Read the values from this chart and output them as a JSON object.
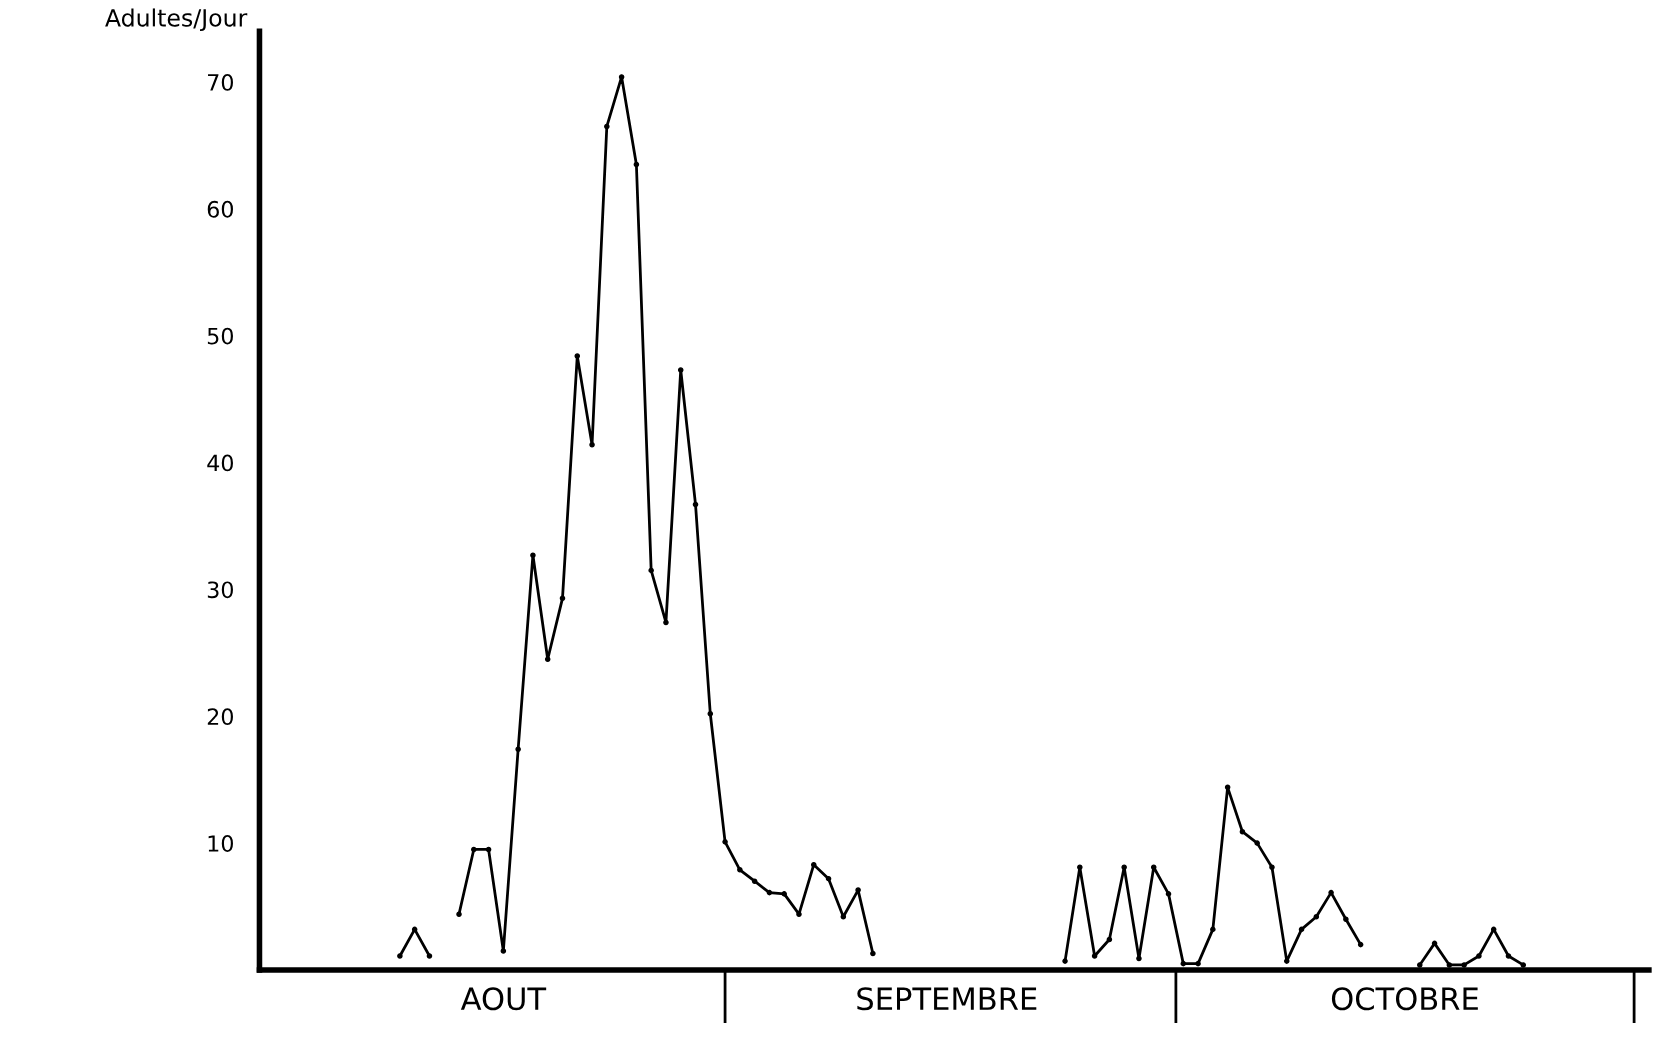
{
  "chart_data": {
    "type": "line",
    "ylabel": "Adultes/Jour",
    "categories": [
      null,
      null,
      null,
      null,
      null,
      null,
      null,
      null,
      null,
      null,
      null,
      null,
      null,
      null,
      null,
      null,
      "AOUT",
      null,
      null,
      null,
      null,
      null,
      null,
      null,
      null,
      null,
      null,
      null,
      null,
      null,
      null,
      null,
      null,
      null,
      null,
      null,
      null,
      null,
      null,
      null,
      null,
      null,
      null,
      null,
      null,
      null,
      "SEPTEMBRE",
      null,
      null,
      null,
      null,
      null,
      null,
      null,
      null,
      null,
      null,
      null,
      null,
      null,
      null,
      null,
      null,
      null,
      null,
      null,
      null,
      null,
      null,
      null,
      null,
      null,
      null,
      null,
      null,
      null,
      null,
      "OCTOBRE",
      null,
      null,
      null,
      null,
      null,
      null,
      null,
      null,
      null,
      null,
      null,
      null,
      null,
      null,
      null,
      null
    ],
    "series": [
      {
        "color": "#000000",
        "values": [
          null,
          null,
          null,
          null,
          null,
          null,
          null,
          null,
          null,
          1.1,
          3.2,
          1.1,
          null,
          4.4,
          9.5,
          9.5,
          1.5,
          17.4,
          32.7,
          24.5,
          29.3,
          48.4,
          41.4,
          66.5,
          70.4,
          63.5,
          31.5,
          27.4,
          47.3,
          36.7,
          20.2,
          10.1,
          7.9,
          7.0,
          6.1,
          6.0,
          4.4,
          8.3,
          7.2,
          4.2,
          6.3,
          1.3,
          null,
          null,
          null,
          null,
          null,
          null,
          null,
          null,
          null,
          null,
          null,
          null,
          0.7,
          8.1,
          1.1,
          2.4,
          8.1,
          0.9,
          8.1,
          6.0,
          0.5,
          0.5,
          3.2,
          14.4,
          10.9,
          10.0,
          8.1,
          0.7,
          3.2,
          4.2,
          6.1,
          4.0,
          2.0,
          null,
          null,
          null,
          0.4,
          2.1,
          0.4,
          0.4,
          1.1,
          3.2,
          1.1,
          0.4,
          null,
          null,
          null,
          null,
          null,
          null,
          null,
          null
        ]
      }
    ],
    "ylim": [
      0,
      74
    ],
    "yticks": [
      10,
      20,
      30,
      40,
      50,
      60,
      70
    ],
    "marker": "circle",
    "line_style": "solid",
    "grid": false,
    "legend": false
  }
}
